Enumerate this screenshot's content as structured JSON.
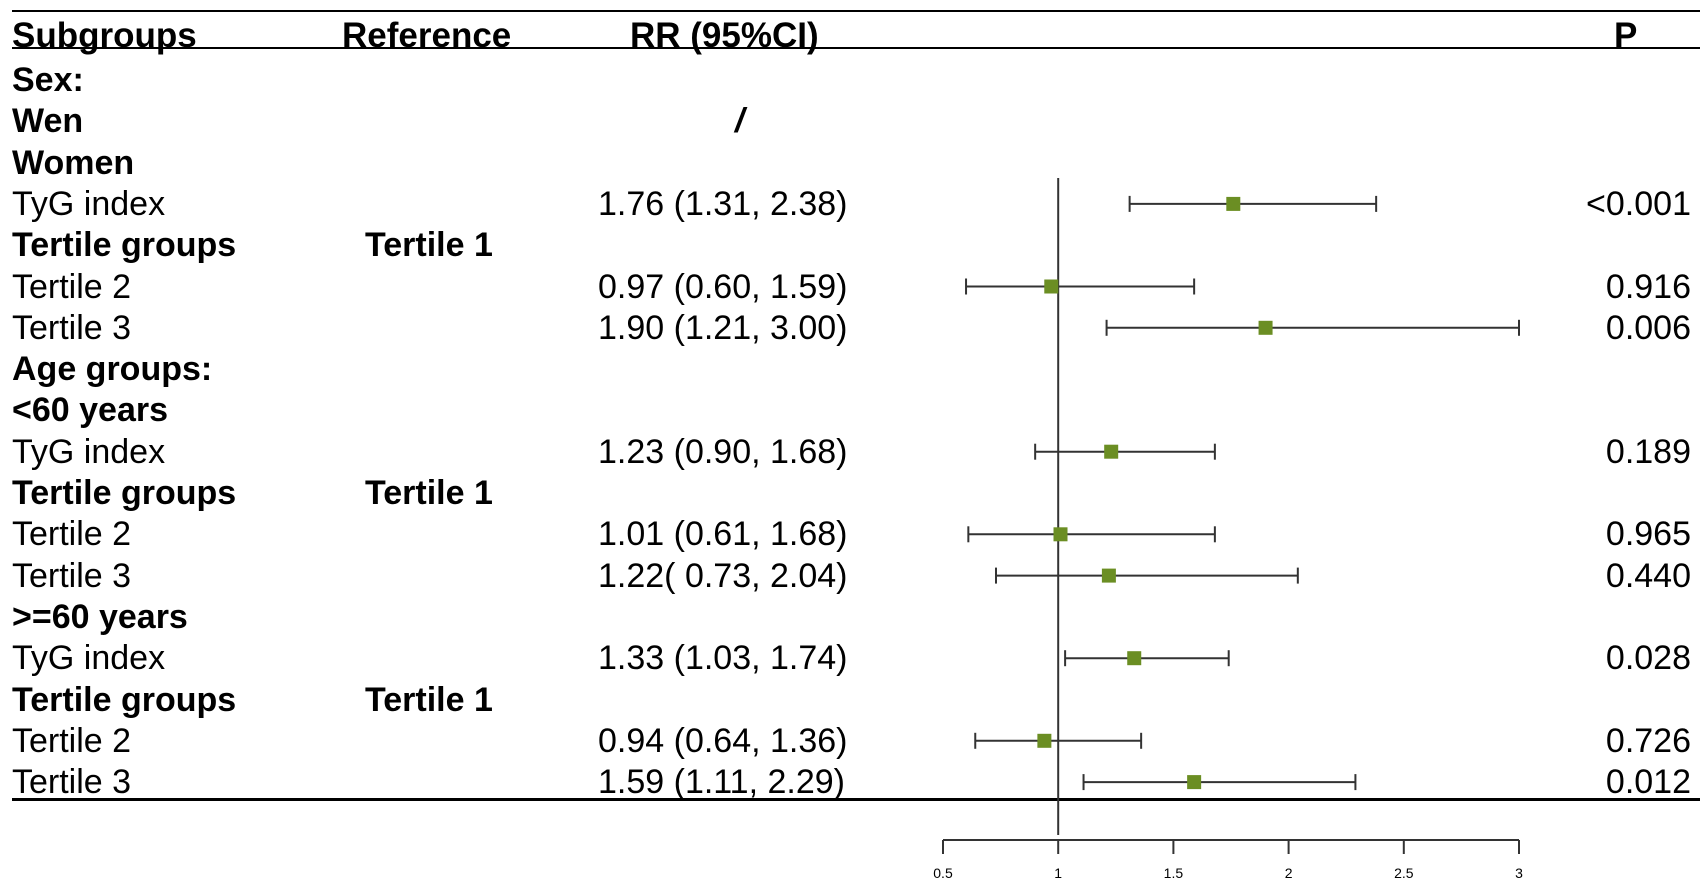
{
  "headers": {
    "subgroups": "Subgroups",
    "reference": "Reference",
    "rr": "RR (95%CI)",
    "p": "P"
  },
  "colors": {
    "marker": "#6b8e23",
    "line": "#333333",
    "text": "#000000"
  },
  "rows": [
    {
      "label": "Sex:",
      "bold": true,
      "reference": "",
      "rr": "",
      "p": ""
    },
    {
      "label": "Wen",
      "bold": true,
      "reference": "",
      "rr": "/",
      "p": ""
    },
    {
      "label": "Women",
      "bold": true,
      "reference": "",
      "rr": "",
      "p": ""
    },
    {
      "label": "TyG index",
      "bold": false,
      "reference": "",
      "rr": "1.76 (1.31, 2.38)",
      "p": "<0.001"
    },
    {
      "label": "Tertile groups",
      "bold": true,
      "reference": "Tertile 1",
      "rr": "",
      "p": ""
    },
    {
      "label": "Tertile 2",
      "bold": false,
      "reference": "",
      "rr": "0.97 (0.60, 1.59)",
      "p": "0.916"
    },
    {
      "label": "Tertile 3",
      "bold": false,
      "reference": "",
      "rr": "1.90 (1.21, 3.00)",
      "p": "0.006"
    },
    {
      "label": "Age groups:",
      "bold": true,
      "reference": "",
      "rr": "",
      "p": ""
    },
    {
      "label": "<60 years",
      "bold": true,
      "reference": "",
      "rr": "",
      "p": ""
    },
    {
      "label": "TyG index",
      "bold": false,
      "reference": "",
      "rr": "1.23 (0.90, 1.68)",
      "p": "0.189"
    },
    {
      "label": "Tertile groups",
      "bold": true,
      "reference": "Tertile 1",
      "rr": "",
      "p": ""
    },
    {
      "label": "Tertile 2",
      "bold": false,
      "reference": "",
      "rr": "1.01 (0.61, 1.68)",
      "p": "0.965"
    },
    {
      "label": "Tertile 3",
      "bold": false,
      "reference": "",
      "rr": "1.22( 0.73, 2.04)",
      "p": "0.440"
    },
    {
      "label": ">=60 years",
      "bold": true,
      "reference": "",
      "rr": "",
      "p": ""
    },
    {
      "label": "TyG index",
      "bold": false,
      "reference": "",
      "rr": "1.33 (1.03, 1.74)",
      "p": "0.028"
    },
    {
      "label": "Tertile groups",
      "bold": true,
      "reference": "Tertile 1",
      "rr": "",
      "p": ""
    },
    {
      "label": "Tertile 2",
      "bold": false,
      "reference": "",
      "rr": "0.94 (0.64, 1.36)",
      "p": "0.726"
    },
    {
      "label": "Tertile 3",
      "bold": false,
      "reference": "",
      "rr": "1.59 (1.11, 2.29)",
      "p": "0.012"
    }
  ],
  "chart_data": {
    "type": "forest",
    "title": "",
    "xlabel": "",
    "ylabel": "",
    "xlim": [
      0.5,
      3
    ],
    "xticks": [
      0.5,
      1,
      1.5,
      2,
      2.5,
      3
    ],
    "xtick_labels": [
      "0.5",
      "1",
      "1.5",
      "2",
      "2.5",
      "3"
    ],
    "reference_line": 1,
    "estimates": [
      {
        "row": 3,
        "rr": 1.76,
        "lower": 1.31,
        "upper": 2.38
      },
      {
        "row": 5,
        "rr": 0.97,
        "lower": 0.6,
        "upper": 1.59
      },
      {
        "row": 6,
        "rr": 1.9,
        "lower": 1.21,
        "upper": 3.0
      },
      {
        "row": 9,
        "rr": 1.23,
        "lower": 0.9,
        "upper": 1.68
      },
      {
        "row": 11,
        "rr": 1.01,
        "lower": 0.61,
        "upper": 1.68
      },
      {
        "row": 12,
        "rr": 1.22,
        "lower": 0.73,
        "upper": 2.04
      },
      {
        "row": 14,
        "rr": 1.33,
        "lower": 1.03,
        "upper": 1.74
      },
      {
        "row": 16,
        "rr": 0.94,
        "lower": 0.64,
        "upper": 1.36
      },
      {
        "row": 17,
        "rr": 1.59,
        "lower": 1.11,
        "upper": 2.29
      }
    ]
  }
}
